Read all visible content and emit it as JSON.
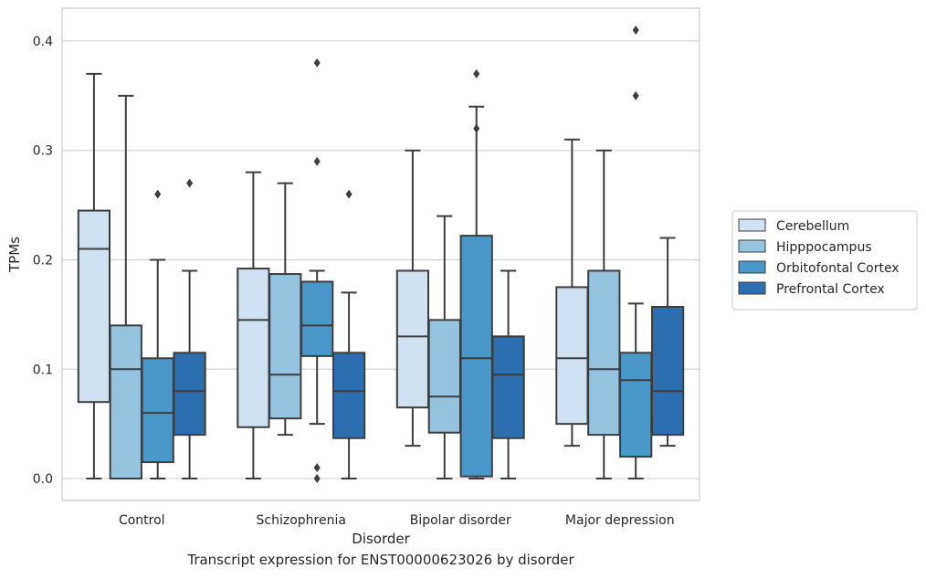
{
  "caption": "Transcript expression for ENST00000623026 by disorder",
  "chart_data": {
    "type": "box",
    "xlabel": "Disorder",
    "ylabel": "TPMs",
    "ylim": [
      -0.02,
      0.43
    ],
    "yticks": [
      0.0,
      0.1,
      0.2,
      0.3,
      0.4
    ],
    "ytick_labels": [
      "0.0",
      "0.1",
      "0.2",
      "0.3",
      "0.4"
    ],
    "grid": true,
    "legend_position": "right",
    "categories": [
      "Control",
      "Schizophrenia",
      "Bipolar disorder",
      "Major depression"
    ],
    "series": [
      {
        "name": "Cerebellum",
        "color": "#d0e1f2",
        "boxes": [
          {
            "whisker_low": 0.0,
            "q1": 0.07,
            "median": 0.21,
            "q3": 0.245,
            "whisker_high": 0.37,
            "outliers": []
          },
          {
            "whisker_low": 0.0,
            "q1": 0.047,
            "median": 0.145,
            "q3": 0.192,
            "whisker_high": 0.28,
            "outliers": []
          },
          {
            "whisker_low": 0.03,
            "q1": 0.065,
            "median": 0.13,
            "q3": 0.19,
            "whisker_high": 0.3,
            "outliers": []
          },
          {
            "whisker_low": 0.03,
            "q1": 0.05,
            "median": 0.11,
            "q3": 0.175,
            "whisker_high": 0.31,
            "outliers": []
          }
        ]
      },
      {
        "name": "Hipppocampus",
        "color": "#94c4df",
        "boxes": [
          {
            "whisker_low": 0.0,
            "q1": 0.0,
            "median": 0.1,
            "q3": 0.14,
            "whisker_high": 0.35,
            "outliers": []
          },
          {
            "whisker_low": 0.04,
            "q1": 0.055,
            "median": 0.095,
            "q3": 0.187,
            "whisker_high": 0.27,
            "outliers": []
          },
          {
            "whisker_low": 0.0,
            "q1": 0.042,
            "median": 0.075,
            "q3": 0.145,
            "whisker_high": 0.24,
            "outliers": []
          },
          {
            "whisker_low": 0.0,
            "q1": 0.04,
            "median": 0.1,
            "q3": 0.19,
            "whisker_high": 0.3,
            "outliers": []
          }
        ]
      },
      {
        "name": "Orbitofontal Cortex",
        "color": "#4a98c9",
        "boxes": [
          {
            "whisker_low": 0.0,
            "q1": 0.015,
            "median": 0.06,
            "q3": 0.11,
            "whisker_high": 0.2,
            "outliers": [
              0.26
            ]
          },
          {
            "whisker_low": 0.05,
            "q1": 0.112,
            "median": 0.14,
            "q3": 0.18,
            "whisker_high": 0.19,
            "outliers": [
              0.38,
              0.29,
              0.01,
              0.0
            ]
          },
          {
            "whisker_low": 0.0,
            "q1": 0.002,
            "median": 0.11,
            "q3": 0.222,
            "whisker_high": 0.34,
            "outliers": [
              0.37,
              0.32
            ]
          },
          {
            "whisker_low": 0.0,
            "q1": 0.02,
            "median": 0.09,
            "q3": 0.115,
            "whisker_high": 0.16,
            "outliers": [
              0.41,
              0.35
            ]
          }
        ]
      },
      {
        "name": "Prefrontal Cortex",
        "color": "#2b6fb0",
        "boxes": [
          {
            "whisker_low": 0.0,
            "q1": 0.04,
            "median": 0.08,
            "q3": 0.115,
            "whisker_high": 0.19,
            "outliers": [
              0.27
            ]
          },
          {
            "whisker_low": 0.0,
            "q1": 0.037,
            "median": 0.08,
            "q3": 0.115,
            "whisker_high": 0.17,
            "outliers": [
              0.26
            ]
          },
          {
            "whisker_low": 0.0,
            "q1": 0.037,
            "median": 0.095,
            "q3": 0.13,
            "whisker_high": 0.19,
            "outliers": []
          },
          {
            "whisker_low": 0.03,
            "q1": 0.04,
            "median": 0.08,
            "q3": 0.157,
            "whisker_high": 0.22,
            "outliers": []
          }
        ]
      }
    ]
  }
}
